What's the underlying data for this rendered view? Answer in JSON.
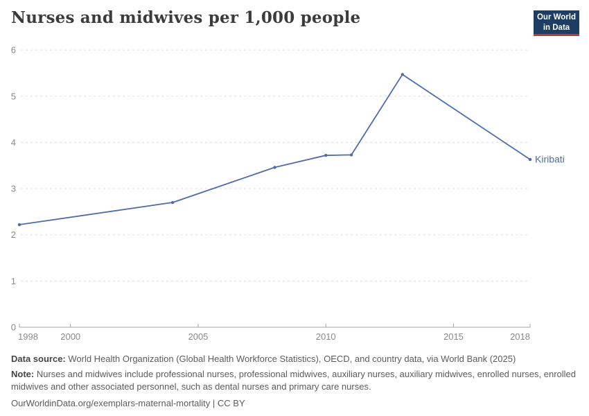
{
  "header": {
    "title": "Nurses and midwives per 1,000 people",
    "logo": {
      "line1": "Our World",
      "line2": "in Data"
    }
  },
  "chart_data": {
    "type": "line",
    "title": "Nurses and midwives per 1,000 people",
    "xlabel": "",
    "ylabel": "",
    "xlim": [
      1998,
      2018
    ],
    "ylim": [
      0,
      6
    ],
    "x_ticks": [
      1998,
      2000,
      2005,
      2010,
      2015,
      2018
    ],
    "y_ticks": [
      0,
      1,
      2,
      3,
      4,
      5,
      6
    ],
    "grid": "horizontal-dashed",
    "legend_position": "end-of-line-label",
    "series": [
      {
        "name": "Kiribati",
        "points": [
          {
            "year": 1998,
            "value": 2.22
          },
          {
            "year": 2004,
            "value": 2.7
          },
          {
            "year": 2008,
            "value": 3.46
          },
          {
            "year": 2010,
            "value": 3.72
          },
          {
            "year": 2011,
            "value": 3.73
          },
          {
            "year": 2013,
            "value": 5.47
          },
          {
            "year": 2018,
            "value": 3.63
          }
        ]
      }
    ]
  },
  "footer": {
    "datasource_label": "Data source:",
    "datasource_text": " World Health Organization (Global Health Workforce Statistics), OECD, and country data, via World Bank (2025)",
    "note_label": "Note:",
    "note_text": " Nurses and midwives include professional nurses, professional midwives, auxiliary nurses, auxiliary midwives, enrolled nurses, enrolled midwives and other associated personnel, such as dental nurses and primary care nurses.",
    "url": "OurWorldinData.org/exemplars-maternal-mortality | CC BY"
  },
  "colors": {
    "background": "#ffffff",
    "title": "#3b3b3b",
    "line": "#4f6ba8",
    "grid": "#dcdcdc",
    "axis": "#a5a5a5",
    "tick_label": "#8a8a8a",
    "footer_text": "#5c5c5c",
    "footer_bold": "#454545",
    "logo_bg": "#1d3d63",
    "logo_accent": "#c0392b"
  }
}
